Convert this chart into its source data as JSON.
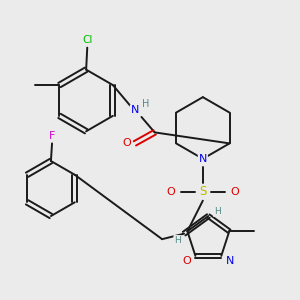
{
  "bg_color": "#ebebeb",
  "bond_color": "#1a1a1a",
  "atom_colors": {
    "N": "#0000ee",
    "O": "#dd0000",
    "S": "#bbbb00",
    "Cl": "#00bb00",
    "F": "#cc00cc",
    "H": "#558888",
    "C": "#1a1a1a"
  }
}
